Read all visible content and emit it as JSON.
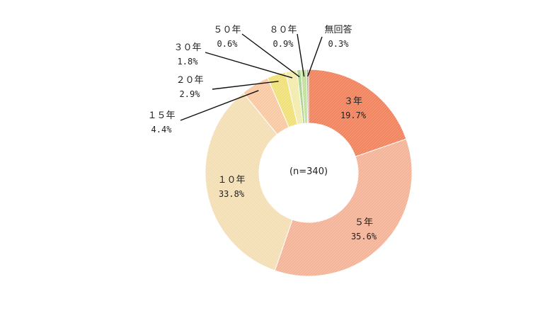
{
  "chart_data": {
    "type": "pie",
    "center_label": "(n=340)",
    "slices": [
      {
        "label": "３年",
        "value": 19.7,
        "value_text": "19.7%",
        "color": "#ee8460"
      },
      {
        "label": "５年",
        "value": 35.6,
        "value_text": "35.6%",
        "color": "#f2b49a"
      },
      {
        "label": "１０年",
        "value": 33.8,
        "value_text": "33.8%",
        "color": "#f3dfb7"
      },
      {
        "label": "１５年",
        "value": 4.4,
        "value_text": "4.4%",
        "color": "#f7c9a5"
      },
      {
        "label": "２０年",
        "value": 2.9,
        "value_text": "2.9%",
        "color": "#efe07e"
      },
      {
        "label": "３０年",
        "value": 1.8,
        "value_text": "1.8%",
        "color": "#f2ebb0"
      },
      {
        "label": "５０年",
        "value": 0.6,
        "value_text": "0.6%",
        "color": "#a9d08e"
      },
      {
        "label": "８０年",
        "value": 0.9,
        "value_text": "0.9%",
        "color": "#c5df9f"
      },
      {
        "label": "無回答",
        "value": 0.3,
        "value_text": "0.3%",
        "color": "#9e9e9e"
      }
    ]
  }
}
